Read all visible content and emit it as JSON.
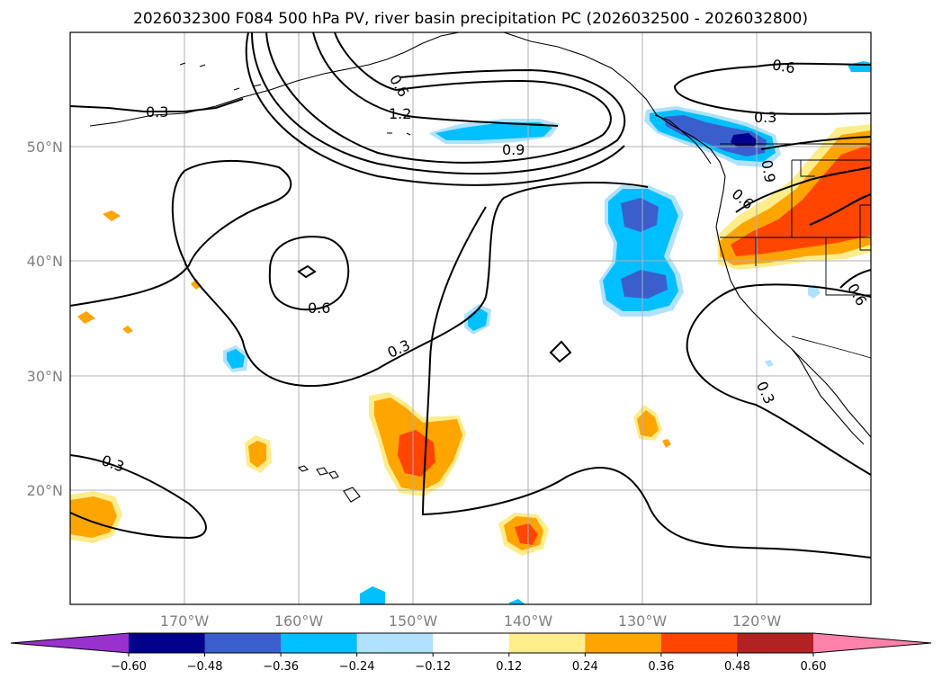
{
  "title": "2026032300 F084 500 hPa PV, river basin precipitation PC (2026032500 - 2026032800)",
  "lon_labels": [
    "170°W",
    "160°W",
    "150°W",
    "140°W",
    "130°W",
    "120°W"
  ],
  "lat_labels": [
    "50°N",
    "40°N",
    "30°N",
    "20°N"
  ],
  "contour_labels": [
    "0.3",
    "0.6",
    "1.2",
    "0.9",
    "0.6",
    "0.3",
    "0.6",
    "0.3",
    "0.3",
    "0.3",
    "0.6",
    "0.6",
    "0.9"
  ],
  "colorbar": {
    "ticks": [
      "−0.60",
      "−0.48",
      "−0.36",
      "−0.24",
      "−0.12",
      "0.12",
      "0.24",
      "0.36",
      "0.48",
      "0.60"
    ],
    "colors": [
      "#9932cc",
      "#00008b",
      "#3a5fcd",
      "#00bfff",
      "#b0e2ff",
      "#ffffff",
      "#ffec8b",
      "#ffa500",
      "#ff4500",
      "#b22222",
      "#ff82ab"
    ]
  }
}
